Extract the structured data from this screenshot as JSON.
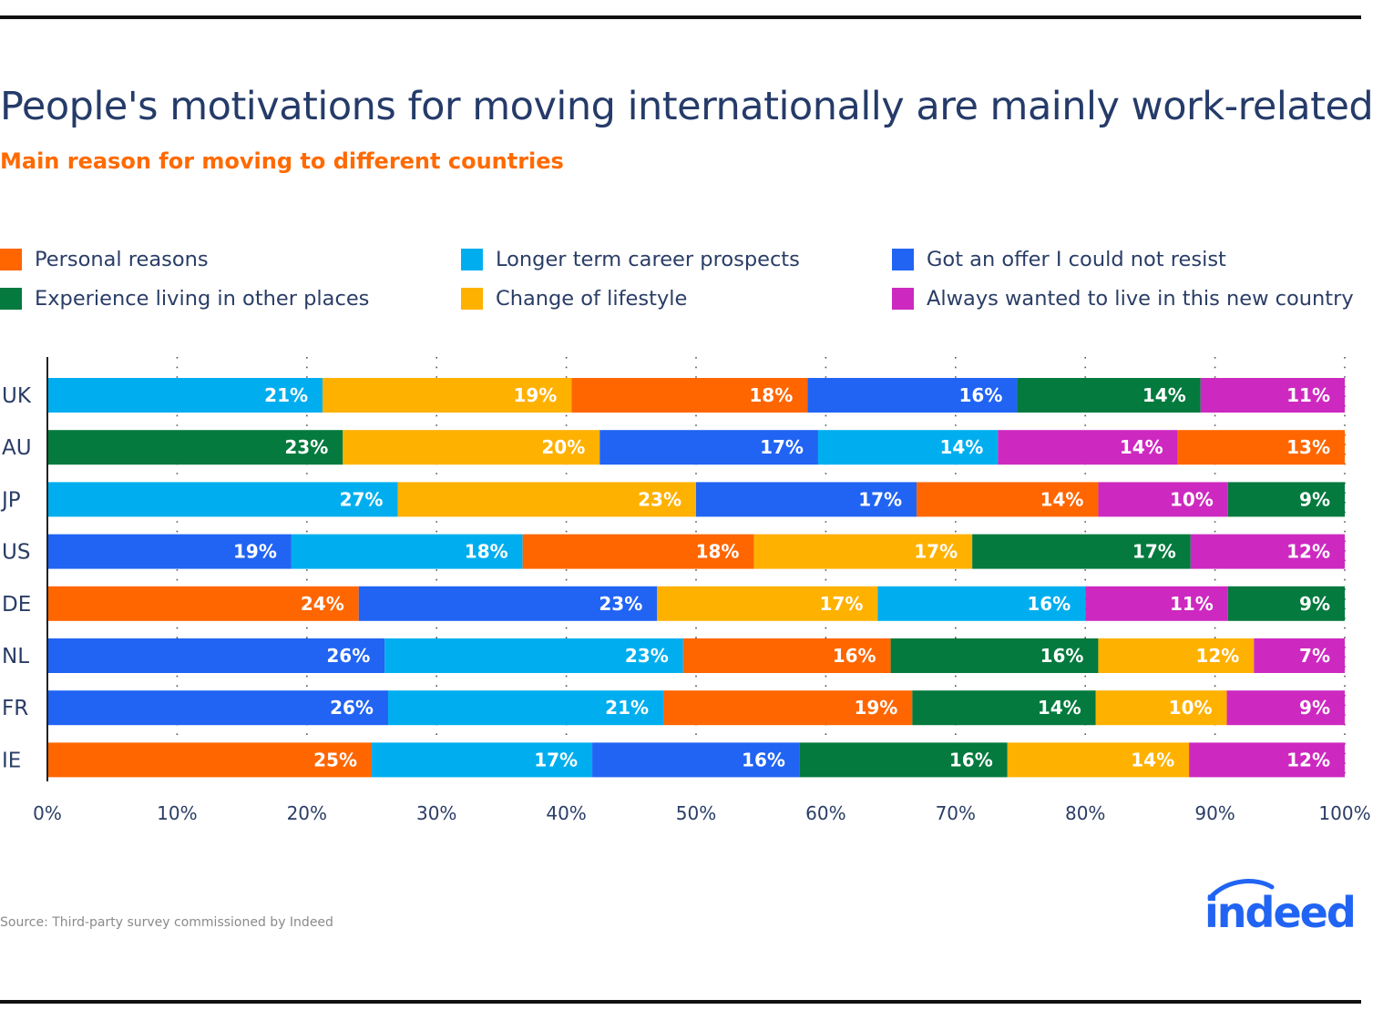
{
  "header": {
    "title": "People's motivations for moving internationally are mainly work-related",
    "subtitle": "Main reason for moving to different countries"
  },
  "legend": [
    {
      "name": "Personal reasons",
      "color": "#ff6600"
    },
    {
      "name": "Longer term career prospects",
      "color": "#00aeef"
    },
    {
      "name": "Got an offer I could not resist",
      "color": "#2164f3"
    },
    {
      "name": "Experience living in other places",
      "color": "#047a3e"
    },
    {
      "name": "Change of lifestyle",
      "color": "#ffb100"
    },
    {
      "name": "Always wanted to live in this new country",
      "color": "#cd29c0"
    }
  ],
  "chart_data": {
    "type": "bar",
    "orientation": "horizontal",
    "stacked": true,
    "categories": [
      "UK",
      "AU",
      "JP",
      "US",
      "DE",
      "NL",
      "FR",
      "IE"
    ],
    "xlim": [
      0,
      100
    ],
    "x_ticks": [
      "0%",
      "10%",
      "20%",
      "30%",
      "40%",
      "50%",
      "60%",
      "70%",
      "80%",
      "90%",
      "100%"
    ],
    "grid": "vertical dotted",
    "legend_position": "top",
    "series_colors": {
      "Personal reasons": "#ff6600",
      "Longer term career prospects": "#00aeef",
      "Got an offer I could not resist": "#2164f3",
      "Experience living in other places": "#047a3e",
      "Change of lifestyle": "#ffb100",
      "Always wanted to live in this new country": "#cd29c0"
    },
    "rows": [
      {
        "category": "UK",
        "segments": [
          {
            "series": "Longer term career prospects",
            "value": 21
          },
          {
            "series": "Change of lifestyle",
            "value": 19
          },
          {
            "series": "Personal reasons",
            "value": 18
          },
          {
            "series": "Got an offer I could not resist",
            "value": 16
          },
          {
            "series": "Experience living in other places",
            "value": 14
          },
          {
            "series": "Always wanted to live in this new country",
            "value": 11
          }
        ]
      },
      {
        "category": "AU",
        "segments": [
          {
            "series": "Experience living in other places",
            "value": 23
          },
          {
            "series": "Change of lifestyle",
            "value": 20
          },
          {
            "series": "Got an offer I could not resist",
            "value": 17
          },
          {
            "series": "Longer term career prospects",
            "value": 14
          },
          {
            "series": "Always wanted to live in this new country",
            "value": 14
          },
          {
            "series": "Personal reasons",
            "value": 13
          }
        ]
      },
      {
        "category": "JP",
        "segments": [
          {
            "series": "Longer term career prospects",
            "value": 27
          },
          {
            "series": "Change of lifestyle",
            "value": 23
          },
          {
            "series": "Got an offer I could not resist",
            "value": 17
          },
          {
            "series": "Personal reasons",
            "value": 14
          },
          {
            "series": "Always wanted to live in this new country",
            "value": 10
          },
          {
            "series": "Experience living in other places",
            "value": 9
          }
        ]
      },
      {
        "category": "US",
        "segments": [
          {
            "series": "Got an offer I could not resist",
            "value": 19
          },
          {
            "series": "Longer term career prospects",
            "value": 18
          },
          {
            "series": "Personal reasons",
            "value": 18
          },
          {
            "series": "Change of lifestyle",
            "value": 17
          },
          {
            "series": "Experience living in other places",
            "value": 17
          },
          {
            "series": "Always wanted to live in this new country",
            "value": 12
          }
        ]
      },
      {
        "category": "DE",
        "segments": [
          {
            "series": "Personal reasons",
            "value": 24
          },
          {
            "series": "Got an offer I could not resist",
            "value": 23
          },
          {
            "series": "Change of lifestyle",
            "value": 17
          },
          {
            "series": "Longer term career prospects",
            "value": 16
          },
          {
            "series": "Always wanted to live in this new country",
            "value": 11
          },
          {
            "series": "Experience living in other places",
            "value": 9
          }
        ]
      },
      {
        "category": "NL",
        "segments": [
          {
            "series": "Got an offer I could not resist",
            "value": 26
          },
          {
            "series": "Longer term career prospects",
            "value": 23
          },
          {
            "series": "Personal reasons",
            "value": 16
          },
          {
            "series": "Experience living in other places",
            "value": 16
          },
          {
            "series": "Change of lifestyle",
            "value": 12
          },
          {
            "series": "Always wanted to live in this new country",
            "value": 7
          }
        ]
      },
      {
        "category": "FR",
        "segments": [
          {
            "series": "Got an offer I could not resist",
            "value": 26
          },
          {
            "series": "Longer term career prospects",
            "value": 21
          },
          {
            "series": "Personal reasons",
            "value": 19
          },
          {
            "series": "Experience living in other places",
            "value": 14
          },
          {
            "series": "Change of lifestyle",
            "value": 10
          },
          {
            "series": "Always wanted to live in this new country",
            "value": 9
          }
        ]
      },
      {
        "category": "IE",
        "segments": [
          {
            "series": "Personal reasons",
            "value": 25
          },
          {
            "series": "Longer term career prospects",
            "value": 17
          },
          {
            "series": "Got an offer I could not resist",
            "value": 16
          },
          {
            "series": "Experience living in other places",
            "value": 16
          },
          {
            "series": "Change of lifestyle",
            "value": 14
          },
          {
            "series": "Always wanted to live in this new country",
            "value": 12
          }
        ]
      }
    ]
  },
  "footer": {
    "source": "Source: Third-party survey commissioned by Indeed",
    "logo_text": "indeed"
  }
}
